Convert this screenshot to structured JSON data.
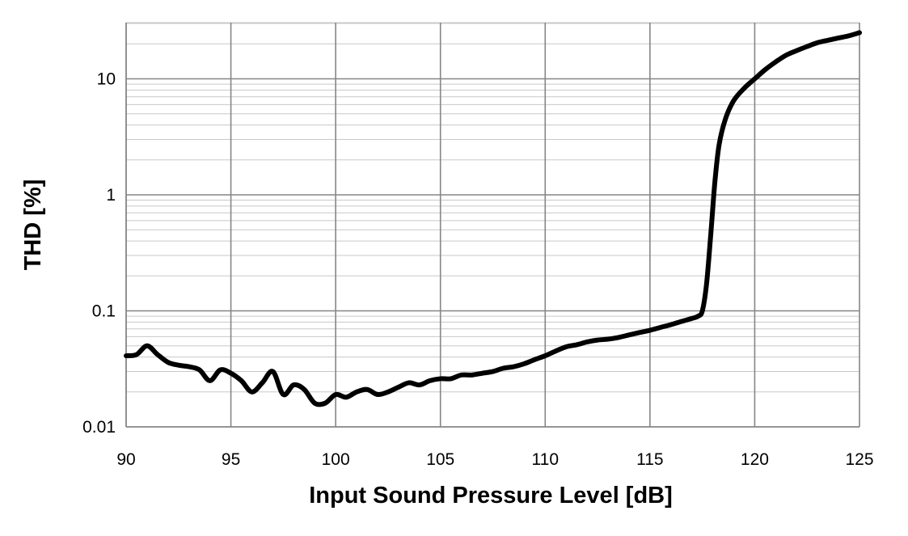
{
  "chart_data": {
    "type": "line",
    "title": "",
    "xlabel": "Input Sound Pressure Level [dB]",
    "ylabel": "THD [%]",
    "xlim": [
      90,
      125
    ],
    "ylim": [
      0.01,
      30
    ],
    "y_scale": "log",
    "grid": true,
    "legend": "none",
    "x_ticks": [
      90,
      95,
      100,
      105,
      110,
      115,
      120,
      125
    ],
    "x_tick_labels": [
      "90",
      "95",
      "100",
      "105",
      "110",
      "115",
      "120",
      "125"
    ],
    "y_ticks": [
      0.01,
      0.1,
      1,
      10
    ],
    "y_tick_labels": [
      "0.01",
      "0.1",
      "1",
      "10"
    ],
    "series": [
      {
        "color": "#000000",
        "x": [
          90.0,
          90.5,
          91.0,
          91.5,
          92.0,
          92.5,
          93.0,
          93.5,
          94.0,
          94.5,
          95.0,
          95.5,
          96.0,
          96.5,
          97.0,
          97.5,
          98.0,
          98.5,
          99.0,
          99.5,
          100.0,
          100.5,
          101.0,
          101.5,
          102.0,
          102.5,
          103.0,
          103.5,
          104.0,
          104.5,
          105.0,
          105.5,
          106.0,
          106.5,
          107.0,
          107.5,
          108.0,
          108.5,
          109.0,
          109.5,
          110.0,
          110.5,
          111.0,
          111.5,
          112.0,
          112.5,
          113.0,
          113.5,
          114.0,
          114.5,
          115.0,
          115.5,
          116.0,
          116.5,
          117.0,
          117.3,
          117.5,
          117.7,
          117.9,
          118.1,
          118.3,
          118.6,
          119.0,
          119.5,
          120.0,
          120.5,
          121.0,
          121.5,
          122.0,
          122.5,
          123.0,
          123.5,
          124.0,
          124.5,
          125.0
        ],
        "y": [
          0.041,
          0.042,
          0.05,
          0.042,
          0.036,
          0.034,
          0.033,
          0.031,
          0.025,
          0.031,
          0.029,
          0.025,
          0.02,
          0.024,
          0.03,
          0.019,
          0.023,
          0.021,
          0.016,
          0.016,
          0.019,
          0.018,
          0.02,
          0.021,
          0.019,
          0.02,
          0.022,
          0.024,
          0.023,
          0.025,
          0.026,
          0.026,
          0.028,
          0.028,
          0.029,
          0.03,
          0.032,
          0.033,
          0.035,
          0.038,
          0.041,
          0.045,
          0.049,
          0.051,
          0.054,
          0.056,
          0.057,
          0.059,
          0.062,
          0.065,
          0.068,
          0.072,
          0.076,
          0.081,
          0.086,
          0.09,
          0.1,
          0.17,
          0.45,
          1.3,
          2.7,
          4.5,
          6.5,
          8.3,
          10.0,
          12.0,
          14.0,
          16.0,
          17.5,
          19.0,
          20.5,
          21.5,
          22.5,
          23.5,
          25.0
        ]
      }
    ]
  }
}
